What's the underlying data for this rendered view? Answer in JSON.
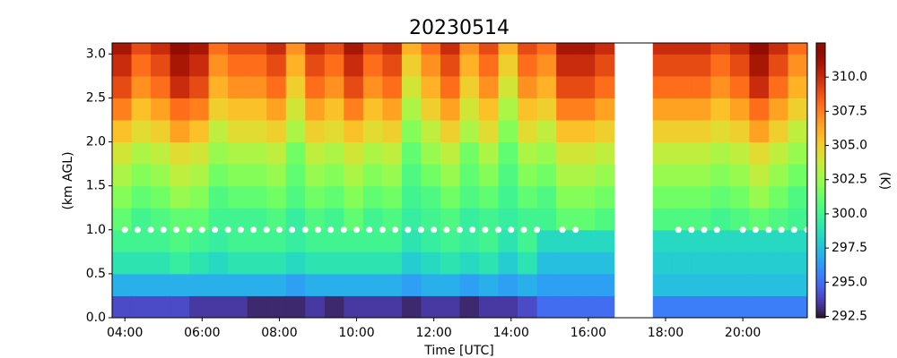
{
  "chart_data": {
    "type": "heatmap",
    "title": "20230514",
    "xlabel": "Time [UTC]",
    "ylabel": "(km AGL)",
    "colorbar_label": "(K)",
    "colormap": "turbo",
    "xlim": [
      3.67,
      21.67
    ],
    "ylim": [
      0,
      3.125
    ],
    "clim": [
      292.4,
      312.5
    ],
    "xticks": [
      {
        "value": 4,
        "label": "04:00"
      },
      {
        "value": 6,
        "label": "06:00"
      },
      {
        "value": 8,
        "label": "08:00"
      },
      {
        "value": 10,
        "label": "10:00"
      },
      {
        "value": 12,
        "label": "12:00"
      },
      {
        "value": 14,
        "label": "14:00"
      },
      {
        "value": 16,
        "label": "16:00"
      },
      {
        "value": 18,
        "label": "18:00"
      },
      {
        "value": 20,
        "label": "20:00"
      }
    ],
    "yticks": [
      {
        "value": 0,
        "label": "0.0"
      },
      0.5,
      {
        "value": 1,
        "label": "1.0"
      },
      1.5,
      {
        "value": 2,
        "label": "2.0"
      },
      2.5,
      {
        "value": 3,
        "label": "3.0"
      }
    ],
    "cticks": [
      292.5,
      {
        "value": 295,
        "label": "295.0"
      },
      297.5,
      {
        "value": 300,
        "label": "300.0"
      },
      302.5,
      {
        "value": 305,
        "label": "305.0"
      },
      307.5,
      {
        "value": 310,
        "label": "310.0"
      }
    ],
    "x_bins": [
      3.67,
      4.17,
      4.67,
      5.17,
      5.67,
      6.17,
      6.67,
      7.17,
      7.67,
      8.17,
      8.67,
      9.17,
      9.67,
      10.17,
      10.67,
      11.17,
      11.67,
      12.17,
      12.67,
      13.17,
      13.67,
      14.17,
      14.67,
      15.17,
      15.67,
      16.17,
      16.67,
      17.17,
      17.67,
      18.17,
      18.67,
      19.17,
      19.67,
      20.17,
      20.67,
      21.17,
      21.67
    ],
    "y_bins": [
      0,
      0.25,
      0.5,
      0.75,
      1,
      1.25,
      1.5,
      1.75,
      2,
      2.25,
      2.5,
      2.75,
      3,
      3.125
    ],
    "values": [
      [
        294,
        297,
        299,
        300,
        301,
        302,
        303,
        304,
        305.5,
        307.5,
        309,
        310,
        311
      ],
      [
        294,
        297,
        299,
        300,
        300,
        301,
        302,
        303,
        304.5,
        305.5,
        307,
        308,
        309
      ],
      [
        294,
        297,
        299,
        300,
        300.5,
        301.5,
        302.5,
        303.5,
        305,
        306.5,
        308,
        309,
        310
      ],
      [
        294,
        297,
        299.5,
        300.5,
        301,
        302.5,
        303.5,
        304.5,
        306.5,
        308,
        310,
        311,
        312
      ],
      [
        293.5,
        297,
        299,
        300,
        301,
        302,
        303,
        304,
        305.5,
        307.5,
        309,
        310,
        311
      ],
      [
        293.5,
        297,
        298.5,
        299.5,
        300,
        300.5,
        301.5,
        302.5,
        303.5,
        305,
        306,
        307,
        308
      ],
      [
        293.5,
        297,
        299,
        300,
        300,
        301,
        302,
        303,
        304.5,
        305.5,
        307,
        308,
        309
      ],
      [
        293,
        297,
        299,
        300,
        300,
        301,
        302,
        303,
        304.5,
        305.5,
        307,
        308,
        309
      ],
      [
        293,
        297,
        299,
        300,
        300.5,
        301.5,
        302.5,
        303.5,
        305,
        306.5,
        308,
        309,
        310
      ],
      [
        293,
        296.5,
        298.5,
        299.5,
        299.5,
        300.5,
        301,
        301.5,
        303,
        304,
        305,
        306,
        307
      ],
      [
        293.5,
        297,
        299,
        300,
        300.5,
        301.5,
        302.5,
        303.5,
        305,
        306.5,
        308,
        309,
        310
      ],
      [
        293,
        297,
        299,
        300,
        300,
        301,
        302,
        303,
        304.5,
        305.5,
        307,
        308,
        309
      ],
      [
        293.5,
        297,
        299,
        300,
        301,
        302,
        303,
        304,
        305.5,
        307.5,
        309,
        310,
        311
      ],
      [
        293.5,
        297,
        299,
        300,
        300,
        301,
        302,
        303,
        304.5,
        305.5,
        307,
        308,
        309
      ],
      [
        293.5,
        297,
        299,
        300,
        300.5,
        301.5,
        302.5,
        303.5,
        305,
        306.5,
        308,
        309,
        310
      ],
      [
        293,
        296.5,
        298,
        299,
        299.5,
        300,
        300.5,
        301,
        302,
        303,
        304,
        305,
        306
      ],
      [
        293.5,
        297,
        298.5,
        299.5,
        300,
        300.5,
        301.5,
        302.5,
        303.5,
        305,
        306,
        307,
        308
      ],
      [
        293.5,
        297,
        299,
        300,
        300.5,
        301.5,
        302.5,
        303.5,
        305,
        306.5,
        308,
        309,
        310
      ],
      [
        293,
        296.5,
        298.5,
        299.5,
        299.5,
        300.5,
        301,
        301.5,
        303,
        304,
        305,
        306,
        307
      ],
      [
        293.5,
        297,
        299,
        300,
        300,
        301,
        302,
        303,
        304.5,
        305.5,
        307,
        308,
        309
      ],
      [
        293.5,
        296.5,
        298,
        299,
        299.5,
        300,
        300.5,
        301,
        302,
        303,
        304,
        305,
        306
      ],
      [
        294,
        297,
        299,
        300,
        300,
        301,
        302,
        303,
        304.5,
        305.5,
        307,
        308,
        309
      ],
      [
        295,
        296.5,
        297.5,
        298.5,
        300,
        300.5,
        301.5,
        302.5,
        303.5,
        305,
        306,
        307,
        308
      ],
      [
        295,
        296.5,
        297.5,
        298.5,
        301,
        302,
        303,
        304,
        305.5,
        307.5,
        309,
        310,
        311
      ],
      [
        295,
        296.5,
        297.5,
        298.5,
        301,
        302,
        303,
        304,
        305.5,
        307.5,
        309,
        310,
        311
      ],
      [
        295,
        296.5,
        297.5,
        298.5,
        300.5,
        301.5,
        302.5,
        303.5,
        305,
        306.5,
        308,
        309,
        310
      ],
      null,
      null,
      [
        295.5,
        297.5,
        298,
        298.5,
        300.5,
        301.5,
        302.5,
        303.5,
        305,
        306.5,
        308,
        309,
        310
      ],
      [
        295.5,
        297.5,
        298,
        298.5,
        300.5,
        301.5,
        302.5,
        303.5,
        305,
        306.5,
        308,
        309,
        310
      ],
      [
        295.5,
        297.5,
        298,
        298.5,
        300.5,
        301.5,
        302.5,
        303.5,
        305,
        306.5,
        308,
        309,
        310
      ],
      [
        295.5,
        297.5,
        298,
        298.5,
        300,
        301,
        302,
        303,
        304.5,
        305.5,
        307,
        308,
        309
      ],
      [
        295.5,
        297.5,
        298,
        298.5,
        300.5,
        301.5,
        302.5,
        303.5,
        305,
        306.5,
        308,
        309,
        310
      ],
      [
        295.5,
        297.5,
        298,
        298.5,
        301,
        302.5,
        303.5,
        304.5,
        306.5,
        308,
        310,
        311,
        312
      ],
      [
        295.5,
        297.5,
        298,
        298.5,
        300.5,
        301.5,
        302.5,
        303.5,
        305,
        306.5,
        308,
        309,
        310
      ],
      [
        295.5,
        297.5,
        298,
        298.5,
        300,
        300.5,
        301.5,
        302.5,
        303.5,
        305,
        306,
        307,
        308
      ]
    ],
    "points": {
      "color": "#ffffff",
      "x": [
        4,
        4.33,
        4.67,
        5,
        5.33,
        5.67,
        6,
        6.33,
        6.67,
        7,
        7.33,
        7.67,
        8,
        8.33,
        8.67,
        9,
        9.33,
        9.67,
        10,
        10.33,
        10.67,
        11,
        11.33,
        11.67,
        12,
        12.33,
        12.67,
        13,
        13.33,
        13.67,
        14,
        14.33,
        14.67,
        15.33,
        15.67,
        18.33,
        18.67,
        19,
        19.33,
        20,
        20.33,
        20.67,
        21,
        21.33,
        21.67
      ],
      "y": [
        1,
        1,
        1,
        1,
        1,
        1,
        1,
        1,
        1,
        1,
        1,
        1,
        1,
        1,
        1,
        1,
        1,
        1,
        1,
        1,
        1,
        1,
        1,
        1,
        1,
        1,
        1,
        1,
        1,
        1,
        1,
        1,
        1,
        1,
        1,
        1,
        1,
        1,
        1,
        1,
        1,
        1,
        1,
        1,
        1
      ]
    }
  }
}
